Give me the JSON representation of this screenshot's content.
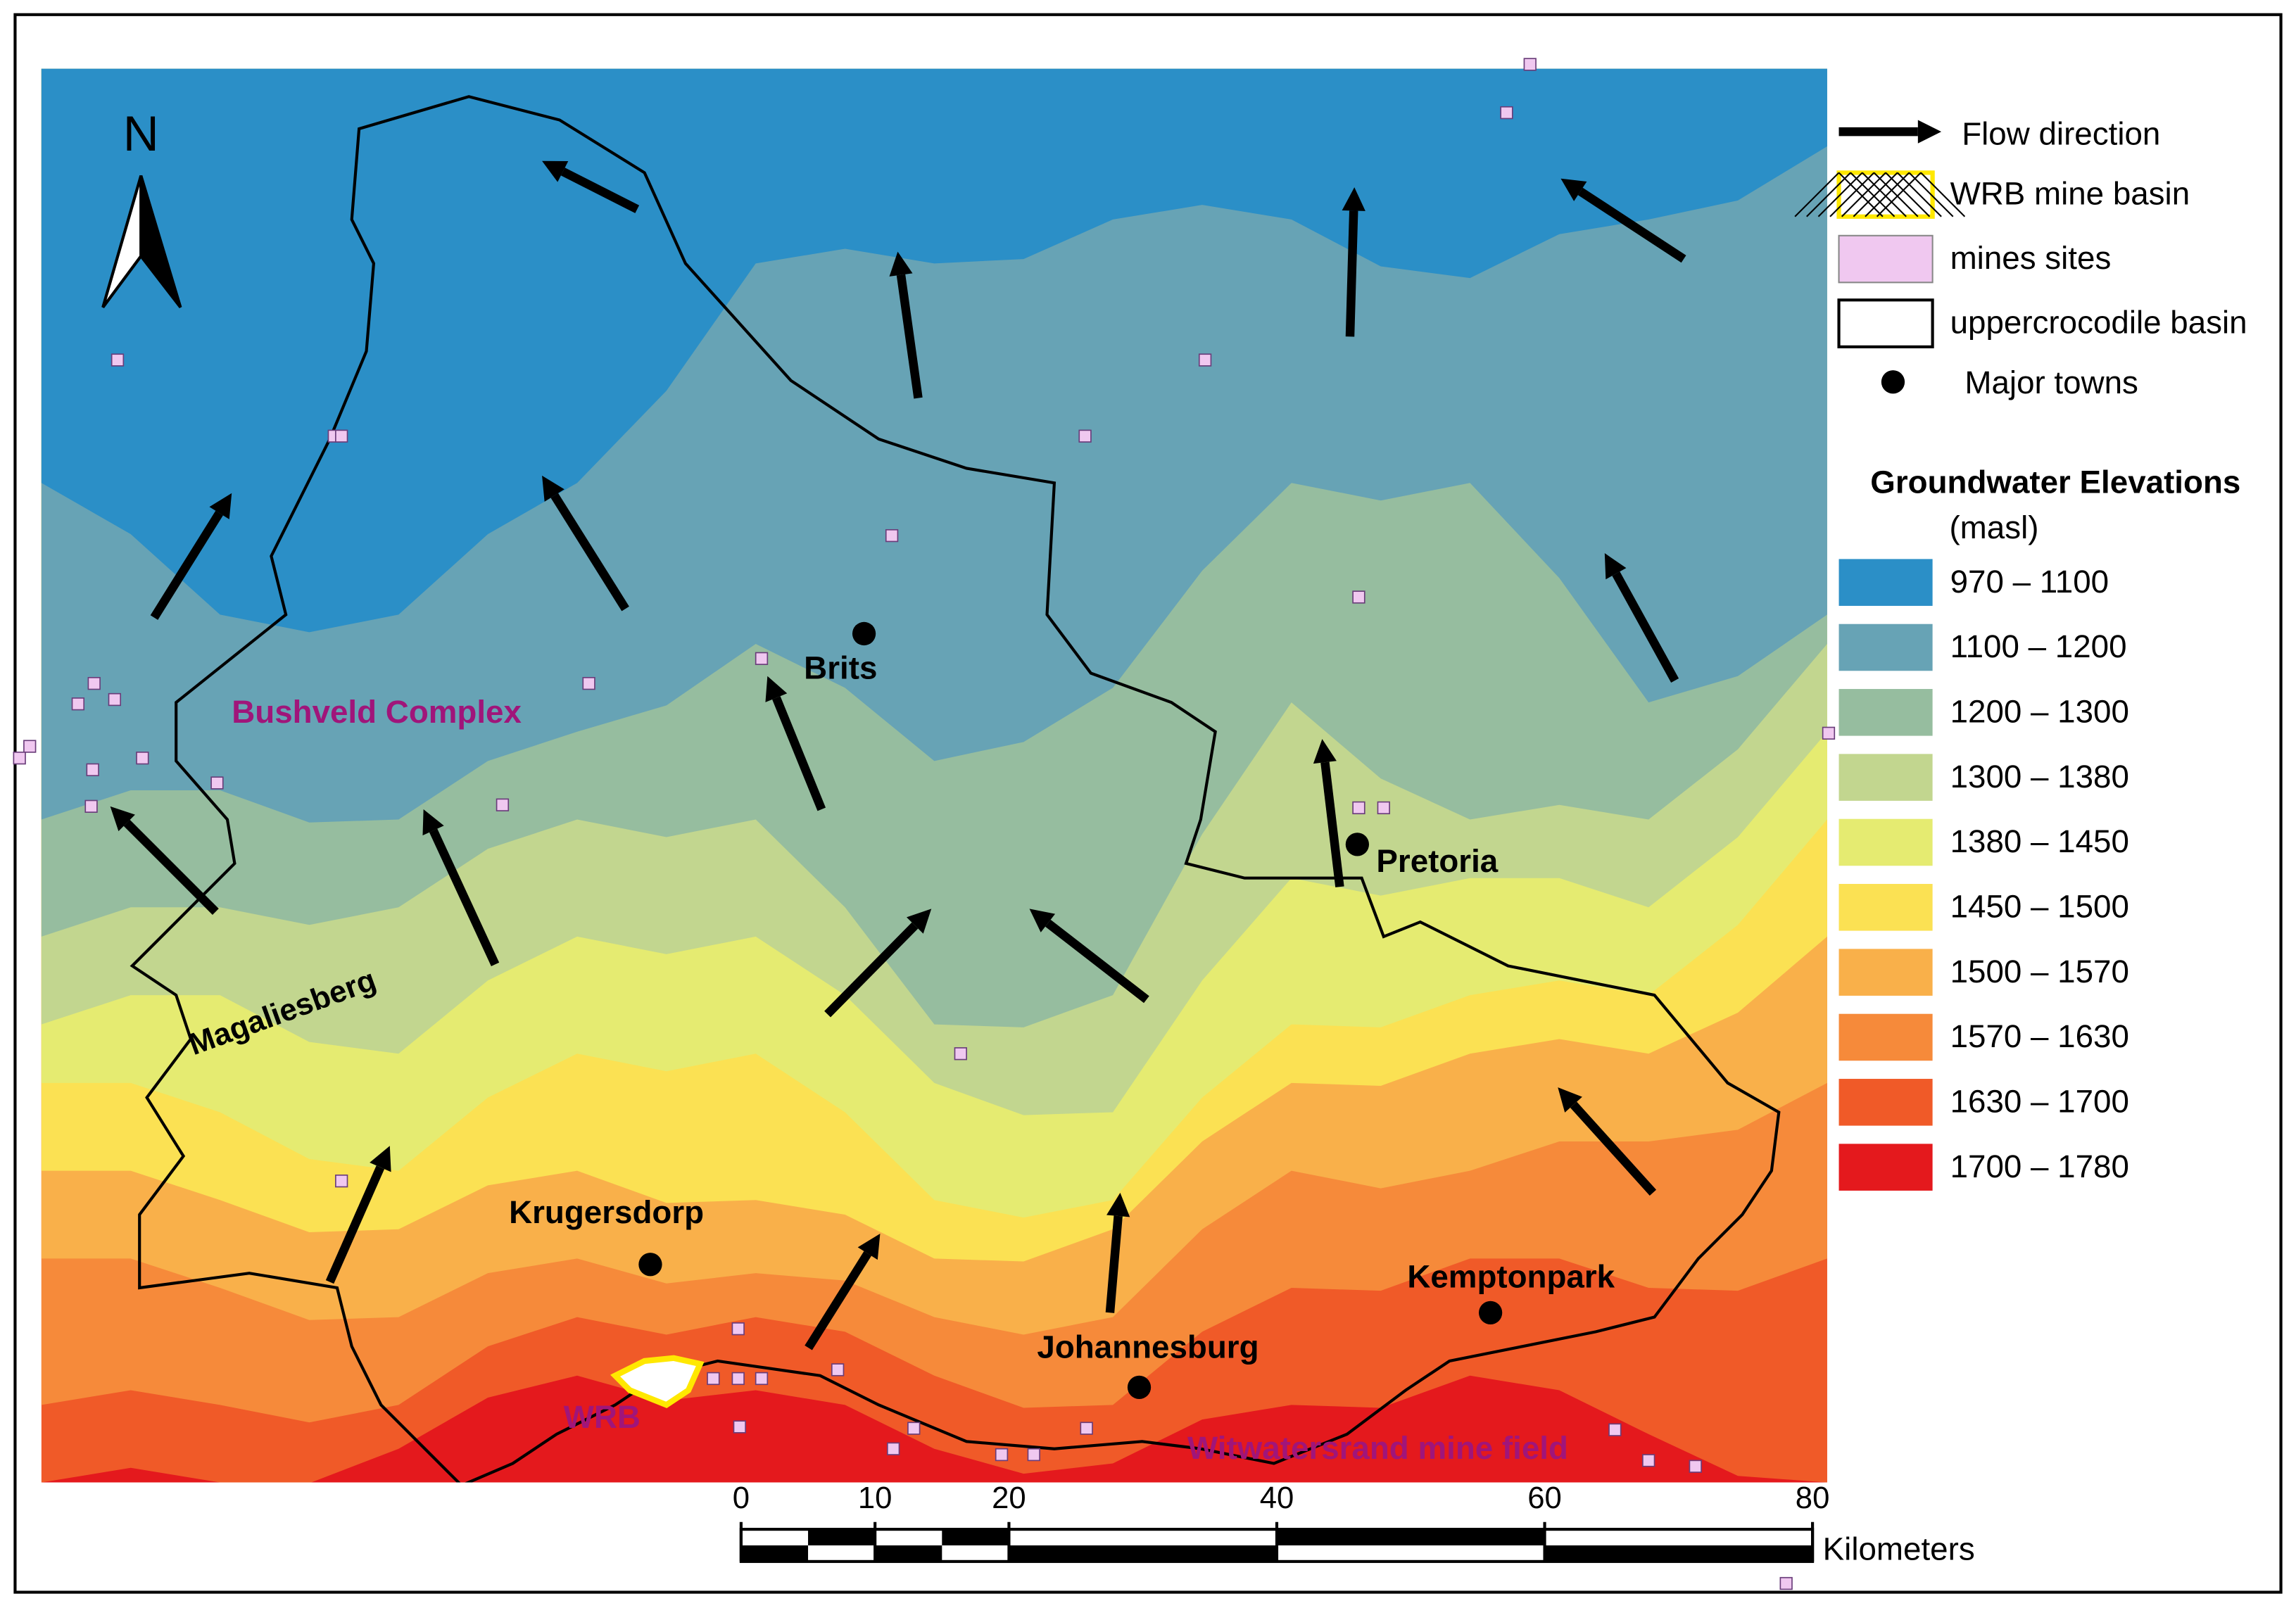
{
  "map": {
    "north": "N",
    "region_labels": [
      {
        "text": "Bushveld Complex"
      },
      {
        "text": "Magaliesberg"
      },
      {
        "text": "WRB"
      },
      {
        "text": "Witwatersrand mine field"
      }
    ],
    "towns": [
      "Brits",
      "Pretoria",
      "Krugersdorp",
      "Johannesburg",
      "Kemptonpark"
    ],
    "legend": {
      "items": [
        "Flow direction",
        "WRB mine basin",
        "mines sites",
        "uppercrocodile basin",
        "Major towns"
      ],
      "title": "Groundwater Elevations",
      "unit": "(masl)",
      "classes": [
        {
          "label": "970 – 1100",
          "color": "#2b8fc7"
        },
        {
          "label": "1100 – 1200",
          "color": "#67a3b5"
        },
        {
          "label": "1200 – 1300",
          "color": "#96bd9f"
        },
        {
          "label": "1300 – 1380",
          "color": "#c2d68f"
        },
        {
          "label": "1380 – 1450",
          "color": "#e5eb71"
        },
        {
          "label": "1450 – 1500",
          "color": "#fbe153"
        },
        {
          "label": "1500 – 1570",
          "color": "#f9b04a"
        },
        {
          "label": "1570 – 1630",
          "color": "#f68a3a"
        },
        {
          "label": "1630 – 1700",
          "color": "#f05a28"
        },
        {
          "label": "1700 – 1780",
          "color": "#e4191d"
        }
      ]
    },
    "scale_bar": {
      "ticks": [
        0,
        10,
        20,
        40,
        60,
        80
      ],
      "unit": "Kilometers"
    }
  }
}
